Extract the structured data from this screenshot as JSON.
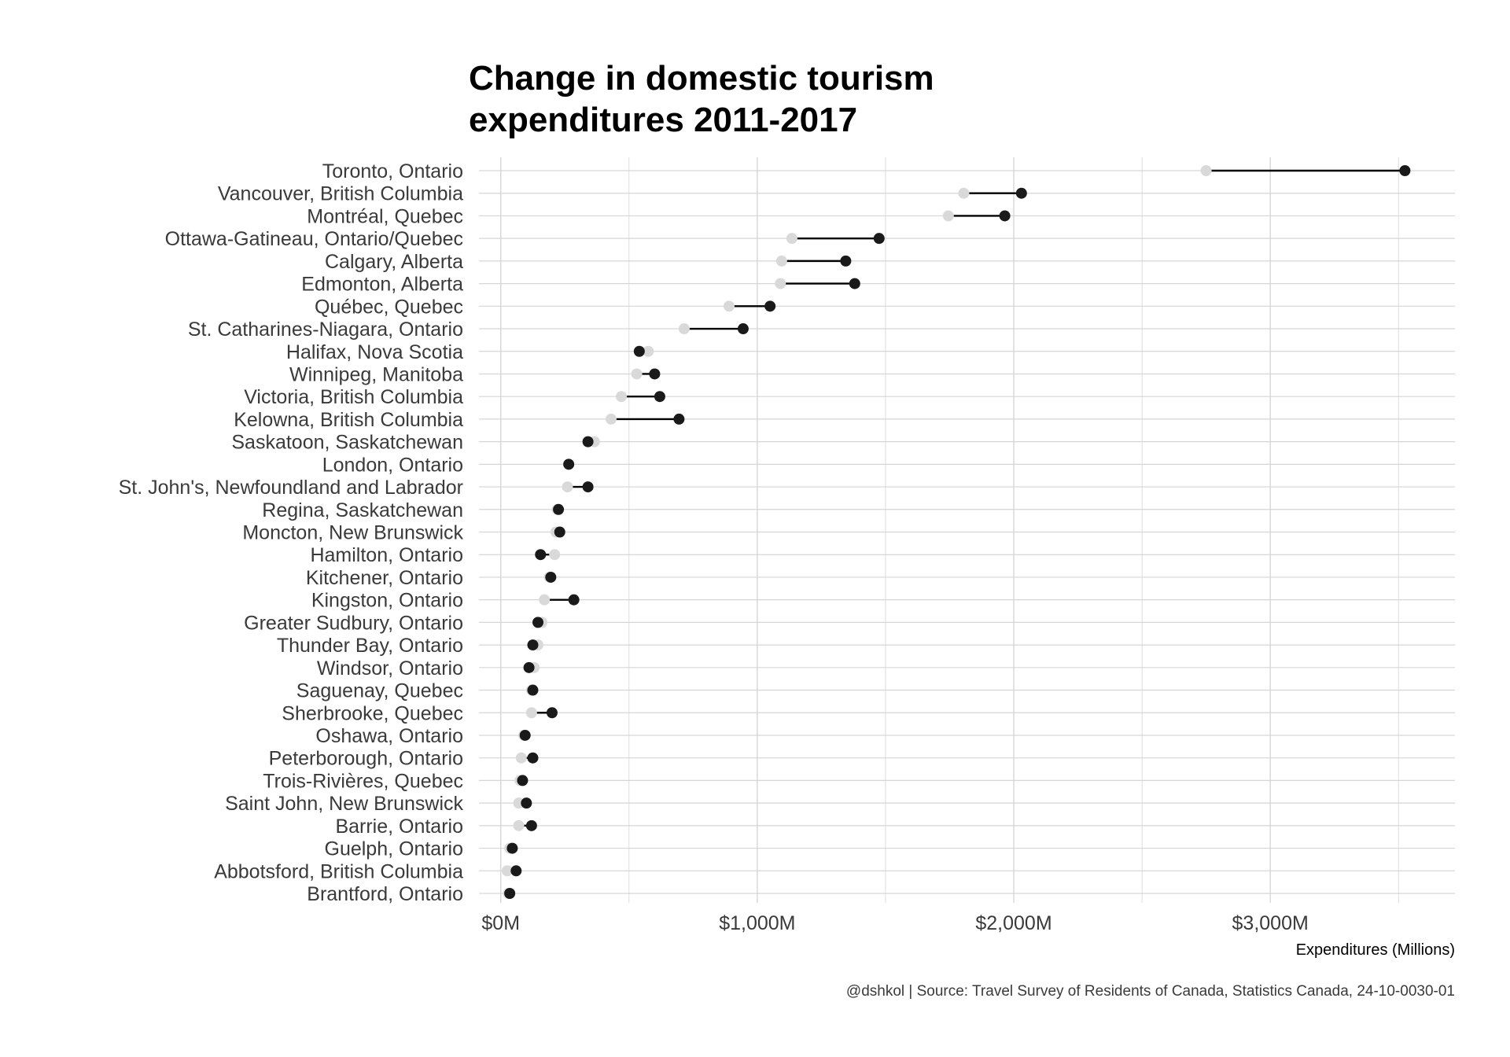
{
  "chart_data": {
    "type": "dumbbell",
    "title_lines": [
      "Change in domestic tourism",
      "expenditures 2011-2017"
    ],
    "xlabel": "Expenditures (Millions)",
    "caption": "@dshkol | Source: Travel Survey of Residents of Canada, Statistics Canada, 24-10-0030-01",
    "xlim": [
      -85,
      3720
    ],
    "x_ticks": [
      0,
      1000,
      2000,
      3000
    ],
    "x_tick_labels": [
      "$0M",
      "$1,000M",
      "$2,000M",
      "$3,000M"
    ],
    "grid": true,
    "colors": {
      "start": "#d9d9d9",
      "end": "#1a1a1a",
      "segment": "#000000",
      "grid": "#d6d6d6"
    },
    "categories": [
      "Toronto, Ontario",
      "Vancouver, British Columbia",
      "Montréal, Quebec",
      "Ottawa-Gatineau, Ontario/Quebec",
      "Calgary, Alberta",
      "Edmonton, Alberta",
      "Québec, Quebec",
      "St. Catharines-Niagara, Ontario",
      "Halifax, Nova Scotia",
      "Winnipeg, Manitoba",
      "Victoria, British Columbia",
      "Kelowna, British Columbia",
      "Saskatoon, Saskatchewan",
      "London, Ontario",
      "St. John's, Newfoundland and Labrador",
      "Regina, Saskatchewan",
      "Moncton, New Brunswick",
      "Hamilton, Ontario",
      "Kitchener, Ontario",
      "Kingston, Ontario",
      "Greater Sudbury, Ontario",
      "Thunder Bay, Ontario",
      "Windsor, Ontario",
      "Saguenay, Quebec",
      "Sherbrooke, Quebec",
      "Oshawa, Ontario",
      "Peterborough, Ontario",
      "Trois-Rivières, Quebec",
      "Saint John, New Brunswick",
      "Barrie, Ontario",
      "Guelph, Ontario",
      "Abbotsford, British Columbia",
      "Brantford, Ontario"
    ],
    "series": [
      {
        "values": [
          2750,
          1805,
          1745,
          1135,
          1095,
          1090,
          890,
          715,
          575,
          530,
          470,
          430,
          365,
          265,
          260,
          220,
          215,
          210,
          190,
          170,
          160,
          145,
          130,
          120,
          120,
          90,
          80,
          75,
          70,
          70,
          35,
          25,
          30
        ]
      },
      {
        "values": [
          3525,
          2030,
          1965,
          1475,
          1345,
          1380,
          1050,
          945,
          540,
          600,
          620,
          695,
          340,
          265,
          340,
          225,
          230,
          155,
          195,
          285,
          145,
          125,
          110,
          125,
          200,
          95,
          125,
          85,
          100,
          120,
          45,
          60,
          35
        ]
      }
    ]
  }
}
